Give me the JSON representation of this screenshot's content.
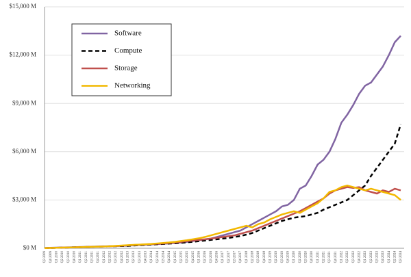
{
  "chart_data": {
    "type": "line",
    "categories": [
      "Q3 2009",
      "Q4 2009",
      "Q1 2010",
      "Q2 2010",
      "Q3 2010",
      "Q4 2010",
      "Q1 2011",
      "Q2 2011",
      "Q3 2011",
      "Q4 2011",
      "Q1 2012",
      "Q2 2012",
      "Q3 2012",
      "Q4 2012",
      "Q1 2013",
      "Q2 2013",
      "Q3 2013",
      "Q4 2013",
      "Q1 2014",
      "Q2 2014",
      "Q3 2014",
      "Q4 2014",
      "Q1 2015",
      "Q2 2015",
      "Q3 2015",
      "Q4 2015",
      "Q1 2016",
      "Q2 2016",
      "Q3 2016",
      "Q4 2016",
      "Q1 2017",
      "Q2 2017",
      "Q3 2017",
      "Q4 2017",
      "Q1 2018",
      "Q2 2018",
      "Q3 2018",
      "Q4 2018",
      "Q1 2019",
      "Q2 2019",
      "Q3 2019",
      "Q4 2019",
      "Q1 2020",
      "Q2 2020",
      "Q3 2020",
      "Q4 2020",
      "Q1 2021",
      "Q2 2021",
      "Q3 2021",
      "Q4 2021",
      "Q1 2022",
      "Q2 2022",
      "Q3 2022",
      "Q4 2022",
      "Q1 2023",
      "Q2 2023",
      "Q3 2023",
      "Q4 2023",
      "Q1 2024",
      "Q2 2024",
      "Q3 2024"
    ],
    "series": [
      {
        "name": "Software",
        "color": "#8064a2",
        "dash": false,
        "values": [
          20,
          30,
          40,
          50,
          60,
          70,
          80,
          90,
          100,
          110,
          120,
          130,
          140,
          150,
          160,
          180,
          200,
          220,
          240,
          260,
          280,
          300,
          330,
          360,
          400,
          450,
          500,
          550,
          600,
          700,
          800,
          900,
          1000,
          1100,
          1300,
          1500,
          1700,
          1900,
          2100,
          2300,
          2600,
          2700,
          3000,
          3700,
          3900,
          4500,
          5200,
          5500,
          6000,
          6800,
          7800,
          8300,
          8900,
          9600,
          10100,
          10300,
          10800,
          11300,
          12000,
          12800,
          13200
        ]
      },
      {
        "name": "Compute",
        "color": "#000000",
        "dash": true,
        "values": [
          10,
          20,
          30,
          40,
          50,
          60,
          70,
          80,
          90,
          100,
          110,
          120,
          130,
          140,
          150,
          170,
          190,
          210,
          230,
          250,
          270,
          290,
          310,
          340,
          370,
          400,
          440,
          480,
          520,
          560,
          600,
          640,
          700,
          760,
          850,
          950,
          1100,
          1250,
          1400,
          1550,
          1700,
          1800,
          1900,
          1950,
          2000,
          2100,
          2200,
          2400,
          2550,
          2700,
          2850,
          3000,
          3300,
          3600,
          3900,
          4500,
          5000,
          5500,
          6000,
          6500,
          7700
        ]
      },
      {
        "name": "Storage",
        "color": "#c0504d",
        "dash": false,
        "values": [
          10,
          20,
          30,
          40,
          50,
          60,
          70,
          80,
          90,
          100,
          110,
          120,
          140,
          160,
          180,
          200,
          220,
          240,
          260,
          280,
          300,
          330,
          360,
          400,
          440,
          480,
          520,
          560,
          600,
          650,
          700,
          750,
          800,
          900,
          1000,
          1100,
          1250,
          1400,
          1550,
          1700,
          1850,
          2000,
          2150,
          2300,
          2500,
          2700,
          2900,
          3100,
          3400,
          3600,
          3700,
          3800,
          3750,
          3800,
          3600,
          3500,
          3400,
          3600,
          3500,
          3700,
          3600
        ]
      },
      {
        "name": "Networking",
        "color": "#f2b800",
        "dash": false,
        "values": [
          10,
          20,
          30,
          40,
          50,
          60,
          70,
          80,
          90,
          100,
          110,
          130,
          150,
          170,
          190,
          210,
          230,
          250,
          270,
          300,
          330,
          360,
          400,
          450,
          500,
          560,
          620,
          700,
          800,
          900,
          1000,
          1100,
          1200,
          1300,
          1400,
          1300,
          1500,
          1600,
          1800,
          1950,
          2100,
          2200,
          2300,
          2200,
          2400,
          2600,
          2800,
          3100,
          3500,
          3600,
          3800,
          3900,
          3800,
          3700,
          3600,
          3700,
          3600,
          3500,
          3400,
          3300,
          3000
        ]
      }
    ],
    "ylim": [
      0,
      15000
    ],
    "yticks": [
      {
        "value": 0,
        "label": "$0 M"
      },
      {
        "value": 3000,
        "label": "$3,000 M"
      },
      {
        "value": 6000,
        "label": "$6,000 M"
      },
      {
        "value": 9000,
        "label": "$9,000 M"
      },
      {
        "value": 12000,
        "label": "$12,000 M"
      },
      {
        "value": 15000,
        "label": "$15,000 M"
      }
    ],
    "grid": true,
    "legend": "upper left"
  }
}
